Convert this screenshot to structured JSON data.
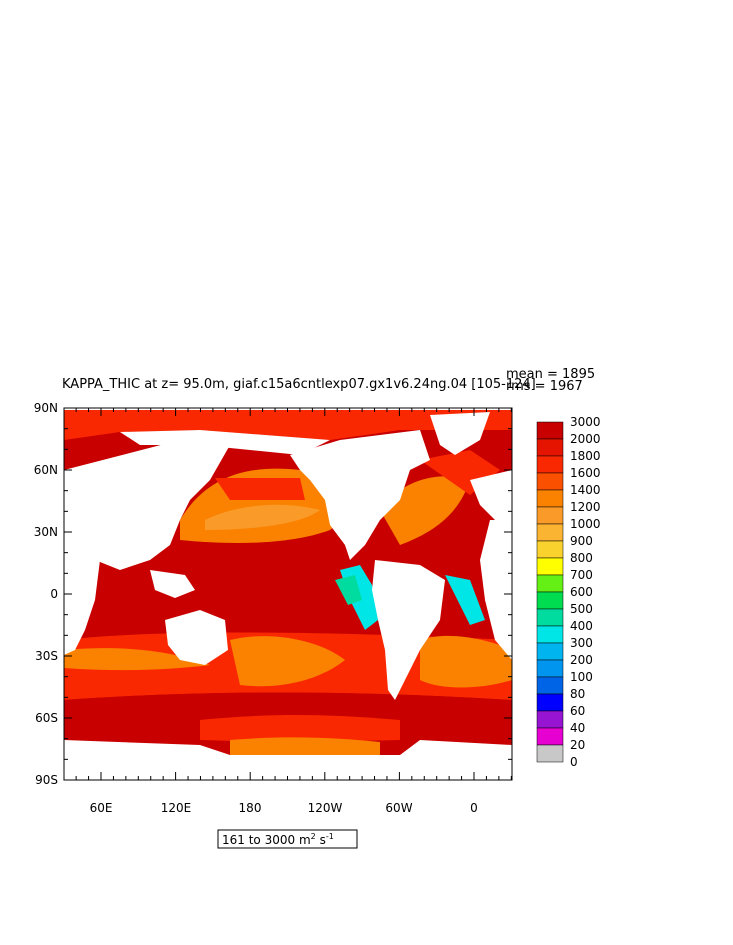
{
  "title": "KAPPA_THIC at z=  95.0m, giaf.c15a6cntlexp07.gx1v6.24ng.04 [105-124]",
  "stats": {
    "mean": "mean = 1895",
    "rms": "rms = 1967"
  },
  "units": {
    "range": "161 to 3000",
    "unit": "m",
    "sup": "2",
    "rest": " s",
    "sup2": "-1"
  },
  "lat_labels": [
    "90N",
    "60N",
    "30N",
    "0",
    "30S",
    "60S",
    "90S"
  ],
  "lon_labels": [
    "60E",
    "120E",
    "180",
    "120W",
    "60W",
    "0"
  ],
  "colorbar": {
    "labels": [
      "3000",
      "2000",
      "1800",
      "1600",
      "1400",
      "1200",
      "1000",
      "900",
      "800",
      "700",
      "600",
      "500",
      "400",
      "300",
      "200",
      "100",
      "80",
      "60",
      "40",
      "20",
      "0"
    ],
    "colors": [
      "#c80000",
      "#e41400",
      "#fa2800",
      "#fa5000",
      "#fa8200",
      "#fa9a28",
      "#fab432",
      "#fad22d",
      "#ffff00",
      "#64f014",
      "#00dc50",
      "#00dca0",
      "#00e6e6",
      "#00b4f0",
      "#0096f0",
      "#0064e6",
      "#0000ff",
      "#9614d2",
      "#e600d2",
      "#c8c8c8",
      "#707070"
    ]
  },
  "colors": {
    "ocean_deep": "#c80000",
    "ocean_mid": "#fa2800",
    "ocean_light": "#fa8200",
    "ocean_pale": "#fa9a28",
    "land": "#ffffff",
    "cyan": "#00e6e6",
    "teal": "#00dca0"
  }
}
